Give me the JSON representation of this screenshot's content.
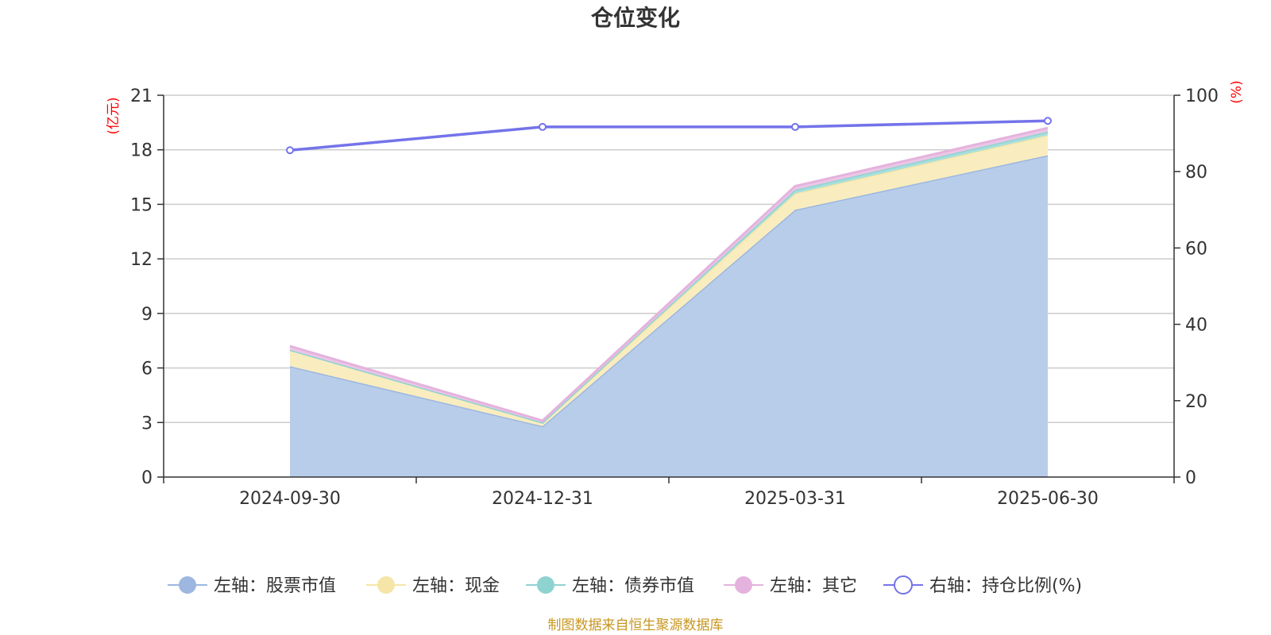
{
  "chart_data": {
    "type": "area",
    "title": "仓位变化",
    "categories": [
      "2024-09-30",
      "2024-12-31",
      "2025-03-31",
      "2025-06-30"
    ],
    "left_axis": {
      "unit": "(亿元)",
      "ylim": [
        0,
        21
      ],
      "ticks": [
        0,
        3,
        6,
        9,
        12,
        15,
        18,
        21
      ]
    },
    "right_axis": {
      "unit": "(%)",
      "ylim": [
        0,
        100
      ],
      "ticks": [
        0,
        20,
        40,
        60,
        80,
        100
      ]
    },
    "series": [
      {
        "name": "左轴：股票市值",
        "axis": "left",
        "stacked": true,
        "values": [
          6.1,
          2.8,
          14.7,
          17.7
        ],
        "color": "#9db7e0",
        "fill": "#b8cdea"
      },
      {
        "name": "左轴：现金",
        "axis": "left",
        "stacked": true,
        "values": [
          0.9,
          0.2,
          0.9,
          1.1
        ],
        "color": "#f5e6a8",
        "fill": "#f9edbf"
      },
      {
        "name": "左轴：债券市值",
        "axis": "left",
        "stacked": true,
        "values": [
          0.0,
          0.0,
          0.2,
          0.2
        ],
        "color": "#8fd3d1",
        "fill": "#a7dedc"
      },
      {
        "name": "左轴：其它",
        "axis": "left",
        "stacked": true,
        "values": [
          0.2,
          0.1,
          0.2,
          0.2
        ],
        "color": "#e4b3dd",
        "fill": "#ecc6e6"
      },
      {
        "name": "右轴：持仓比例(%)",
        "axis": "right",
        "type": "line",
        "values": [
          85.6,
          91.7,
          91.7,
          93.3
        ],
        "color": "#7473ea"
      }
    ],
    "grid": true,
    "legend_position": "bottom"
  },
  "footer": {
    "source": "制图数据来自恒生聚源数据库"
  }
}
